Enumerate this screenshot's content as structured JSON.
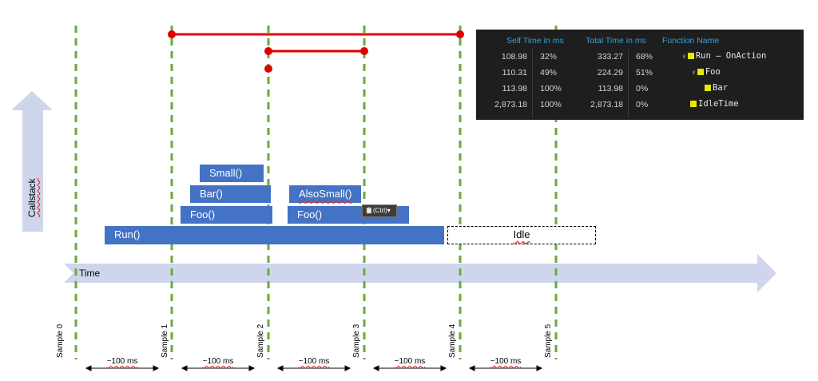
{
  "timeline": {
    "time_label": "Time",
    "callstack_label": "Callstack",
    "samples": [
      "Sample 0",
      "Sample 1",
      "Sample 2",
      "Sample 3",
      "Sample 4",
      "Sample 5"
    ],
    "interval_label": "~100 ms",
    "intervals": [
      "~100 ms",
      "~100 ms",
      "~100 ms",
      "~100 ms",
      "~100 ms"
    ]
  },
  "functions": {
    "run": "Run()",
    "foo1": "Foo()",
    "bar": "Bar()",
    "small": "Small()",
    "foo2": "Foo()",
    "also_small": "AlsoSmall()",
    "idle": "Idle"
  },
  "paste_popup": {
    "label": "(Ctrl)"
  },
  "colors": {
    "guide_line": "#6aaa3a",
    "function_box": "#4472c4",
    "span_line": "#e00000",
    "arrow": "#cfd6ec",
    "panel_bg": "#1e1e1e",
    "header": "#3e9fd6",
    "marker": "#e8e800"
  },
  "table": {
    "headers": {
      "self": "Self Time in ms",
      "total": "Total Time in ms",
      "name": "Function Name"
    },
    "rows": [
      {
        "self_ms": "108.98",
        "self_pct": "32%",
        "total_ms": "333.27",
        "total_pct": "68%",
        "name": "Run – OnAction",
        "expander": "chevron-down-icon"
      },
      {
        "self_ms": "110.31",
        "self_pct": "49%",
        "total_ms": "224.29",
        "total_pct": "51%",
        "name": "Foo",
        "expander": "chevron-down-icon"
      },
      {
        "self_ms": "113.98",
        "self_pct": "100%",
        "total_ms": "113.98",
        "total_pct": "0%",
        "name": "Bar"
      },
      {
        "self_ms": "2,873.18",
        "self_pct": "100%",
        "total_ms": "2,873.18",
        "total_pct": "0%",
        "name": "IdleTime"
      }
    ]
  }
}
